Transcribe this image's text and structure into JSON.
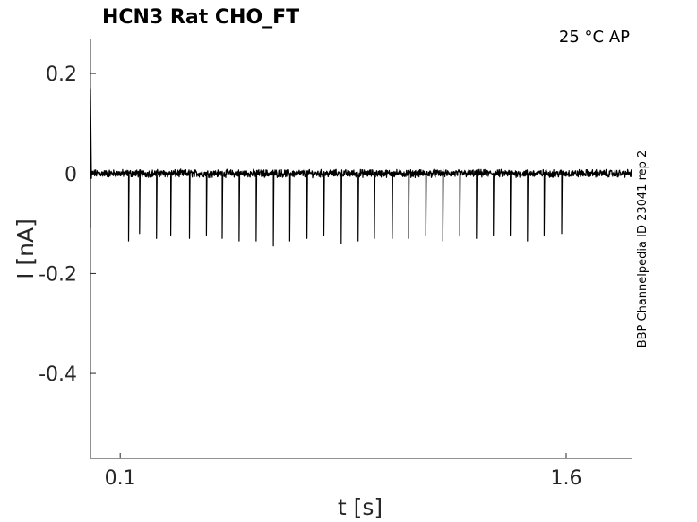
{
  "chart_data": {
    "type": "line",
    "title": "HCN3  Rat  CHO_FT",
    "annotation": "25 °C  AP",
    "side_label": "BBP Channelpedia ID 23041 rep 2",
    "xlabel": "t [s]",
    "ylabel": "I [nA]",
    "xlim": [
      0.0,
      1.82
    ],
    "ylim": [
      -0.57,
      0.27
    ],
    "xticks": [
      0.1,
      1.6
    ],
    "xtick_labels": [
      "0.1",
      "1.6"
    ],
    "yticks": [
      0.2,
      0,
      -0.2,
      -0.4
    ],
    "ytick_labels": [
      "0.2",
      "0",
      "-0.2",
      "-0.4"
    ],
    "grid": false,
    "baseline": 0.0,
    "noise_amplitude": 0.006,
    "initial_transient": {
      "t": 0.0,
      "peak": 0.17,
      "trough": -0.11
    },
    "spikes": {
      "t": [
        0.128,
        0.165,
        0.222,
        0.27,
        0.333,
        0.39,
        0.443,
        0.5,
        0.5,
        0.557,
        0.615,
        0.67,
        0.728,
        0.785,
        0.843,
        0.9,
        0.955,
        1.015,
        1.07,
        1.128,
        1.185,
        1.242,
        1.298,
        1.355,
        1.412,
        1.47,
        1.526,
        1.585
      ],
      "amplitude": [
        -0.135,
        -0.12,
        -0.13,
        -0.125,
        -0.13,
        -0.125,
        -0.13,
        -0.135,
        -0.135,
        -0.135,
        -0.145,
        -0.135,
        -0.13,
        -0.125,
        -0.14,
        -0.135,
        -0.13,
        -0.13,
        -0.13,
        -0.125,
        -0.135,
        -0.125,
        -0.13,
        -0.125,
        -0.125,
        -0.135,
        -0.125,
        -0.12
      ]
    }
  }
}
